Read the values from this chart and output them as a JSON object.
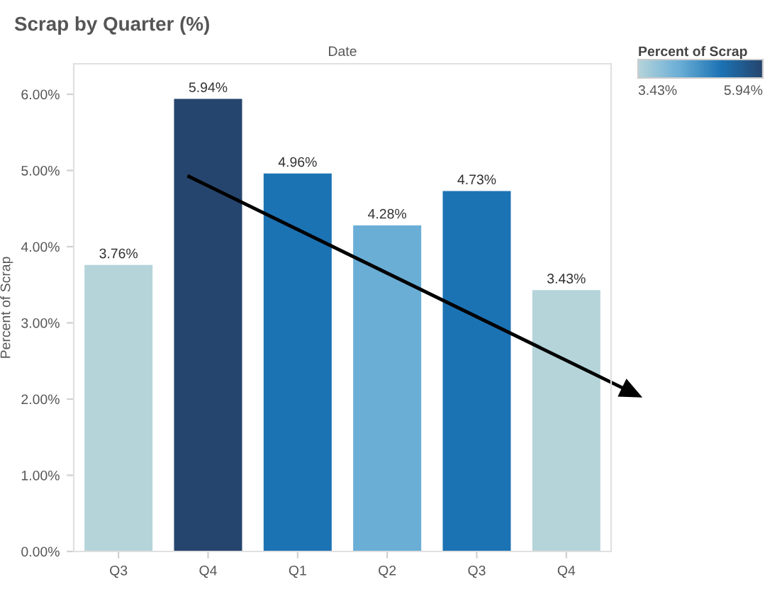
{
  "chart_data": {
    "type": "bar",
    "title": "Scrap by Quarter (%)",
    "xlabel": "Date",
    "ylabel": "Percent of Scrap",
    "categories": [
      "Q3",
      "Q4",
      "Q1",
      "Q2",
      "Q3",
      "Q4"
    ],
    "values": [
      3.76,
      5.94,
      4.96,
      4.28,
      4.73,
      3.43
    ],
    "colors": [
      "#b5d4da",
      "#26456e",
      "#1c73b4",
      "#6aaed6",
      "#1c73b4",
      "#b5d4da"
    ],
    "value_labels": [
      "3.76%",
      "5.94%",
      "4.96%",
      "4.28%",
      "4.73%",
      "3.43%"
    ],
    "ylim": [
      0,
      6.4
    ],
    "yticks": [
      {
        "value": 0,
        "label": "0.00%"
      },
      {
        "value": 1,
        "label": "1.00%"
      },
      {
        "value": 2,
        "label": "2.00%"
      },
      {
        "value": 3,
        "label": "3.00%"
      },
      {
        "value": 4,
        "label": "4.00%"
      },
      {
        "value": 5,
        "label": "5.00%"
      },
      {
        "value": 6,
        "label": "6.00%"
      }
    ],
    "clabel": "Percent of Scrap",
    "clim": [
      3.43,
      5.94
    ],
    "cticks": [
      {
        "value": 3.43,
        "label": "3.43%"
      },
      {
        "value": 5.94,
        "label": "5.94%"
      }
    ],
    "grid": false,
    "legend": false
  }
}
